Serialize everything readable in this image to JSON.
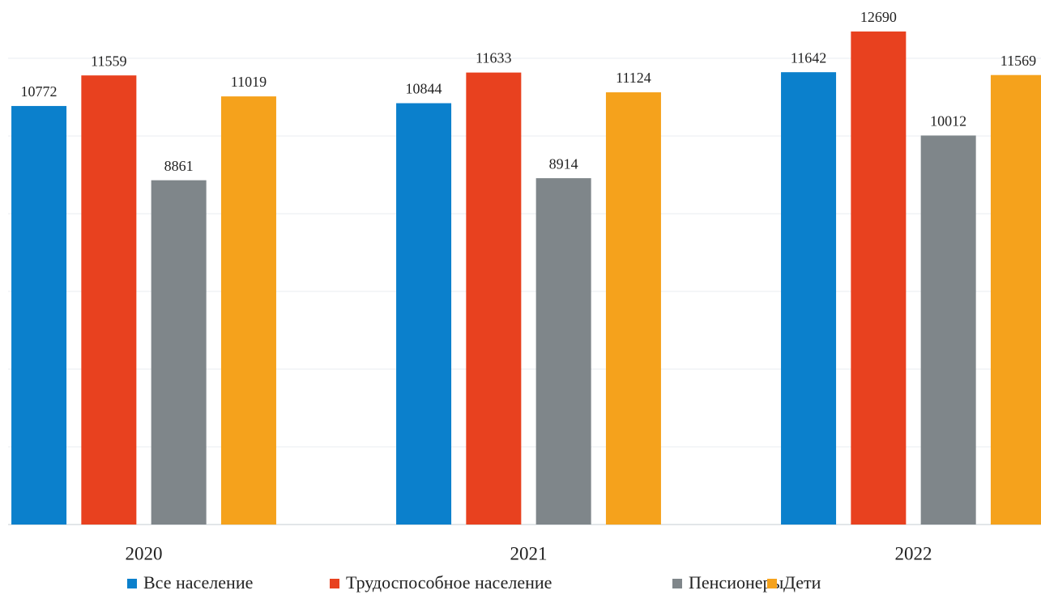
{
  "chart_data": {
    "type": "bar",
    "categories": [
      "2020",
      "2021",
      "2022"
    ],
    "series": [
      {
        "name": "Все население",
        "color": "#0b80cc",
        "values": [
          10772,
          10844,
          11642
        ]
      },
      {
        "name": "Трудоспособное население",
        "color": "#e8411f",
        "values": [
          11559,
          11633,
          12690
        ]
      },
      {
        "name": "Пенсионеры",
        "color": "#7f868a",
        "values": [
          8861,
          8914,
          10012
        ]
      },
      {
        "name": "Дети",
        "color": "#f5a21c",
        "values": [
          11019,
          11124,
          11569
        ]
      }
    ],
    "ylim": [
      0,
      13500
    ],
    "yticks": [
      0,
      2000,
      4000,
      6000,
      8000,
      10000,
      12000
    ],
    "grid": true
  }
}
